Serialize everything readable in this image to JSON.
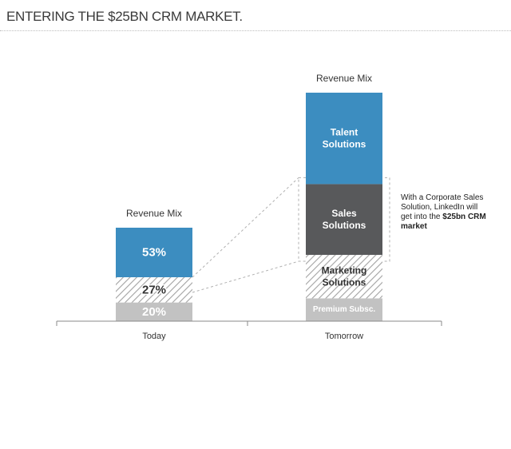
{
  "header": {
    "title": "ENTERING THE $25BN CRM MARKET."
  },
  "colors": {
    "talent": "#3c8dc0",
    "sales": "#58595b",
    "hatch": "#a3a3a3",
    "premium": "#c2c2c2",
    "axis": "#8a8a8a"
  },
  "annotation": {
    "lead": "With a Corporate Sales Solution, LinkedIn will get into the ",
    "bold": "$25bn CRM market"
  },
  "chart_data": {
    "type": "bar",
    "stacked": true,
    "categories": [
      "Today",
      "Tomorrow"
    ],
    "bar_titles": [
      "Revenue Mix",
      "Revenue Mix"
    ],
    "bars": [
      {
        "category": "Today",
        "segments": [
          {
            "key": "premium",
            "label": "20%",
            "value": 20,
            "fill": "premium"
          },
          {
            "key": "marketing",
            "label": "27%",
            "value": 27,
            "fill": "hatch"
          },
          {
            "key": "talent",
            "label": "53%",
            "value": 53,
            "fill": "talent"
          }
        ]
      },
      {
        "category": "Tomorrow",
        "segments": [
          {
            "key": "premium",
            "label": "Premium Subsc.",
            "value": 10,
            "fill": "premium"
          },
          {
            "key": "marketing",
            "label": "Marketing Solutions",
            "value": 19,
            "fill": "hatch"
          },
          {
            "key": "sales",
            "label": "Sales Solutions",
            "value": 31,
            "fill": "sales"
          },
          {
            "key": "talent",
            "label": "Talent Solutions",
            "value": 40,
            "fill": "talent"
          }
        ]
      }
    ],
    "totals": [
      100,
      100
    ]
  }
}
